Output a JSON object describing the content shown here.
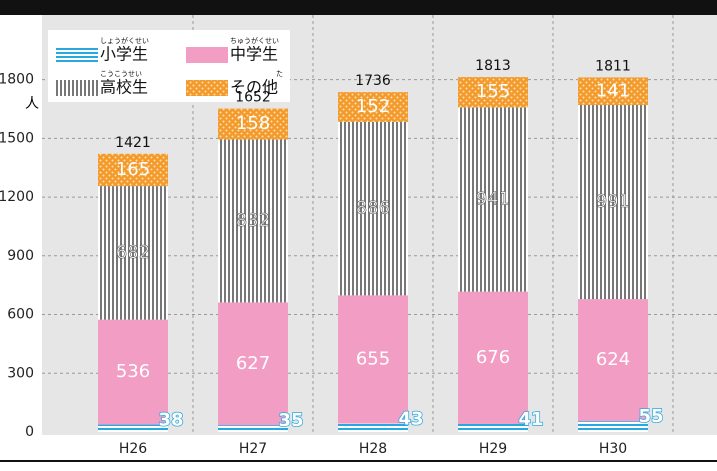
{
  "chart_data": {
    "type": "stacked_bar",
    "y_unit": "人",
    "categories": [
      "H26",
      "H27",
      "H28",
      "H29",
      "H30"
    ],
    "series": [
      {
        "name": "小学生",
        "ruby": "しょうがくせい",
        "color": "#29a8e0",
        "pattern": "hstripe",
        "values": [
          38,
          35,
          43,
          41,
          55
        ]
      },
      {
        "name": "中学生",
        "ruby": "ちゅうがくせい",
        "color": "#f29ec4",
        "pattern": "solid",
        "values": [
          536,
          627,
          655,
          676,
          624
        ]
      },
      {
        "name": "高校生",
        "ruby": "こうこうせい",
        "color": "#777777",
        "pattern": "vstripe",
        "values": [
          682,
          832,
          886,
          941,
          991
        ]
      },
      {
        "name": "その他",
        "ruby": "た",
        "color": "#f39a2b",
        "pattern": "dots",
        "values": [
          165,
          158,
          152,
          155,
          141
        ]
      }
    ],
    "totals": [
      1421,
      1652,
      1736,
      1813,
      1811
    ],
    "ylim": [
      0,
      2130
    ],
    "yticks": [
      0,
      300,
      600,
      900,
      1200,
      1500,
      1800
    ],
    "grid": true
  }
}
